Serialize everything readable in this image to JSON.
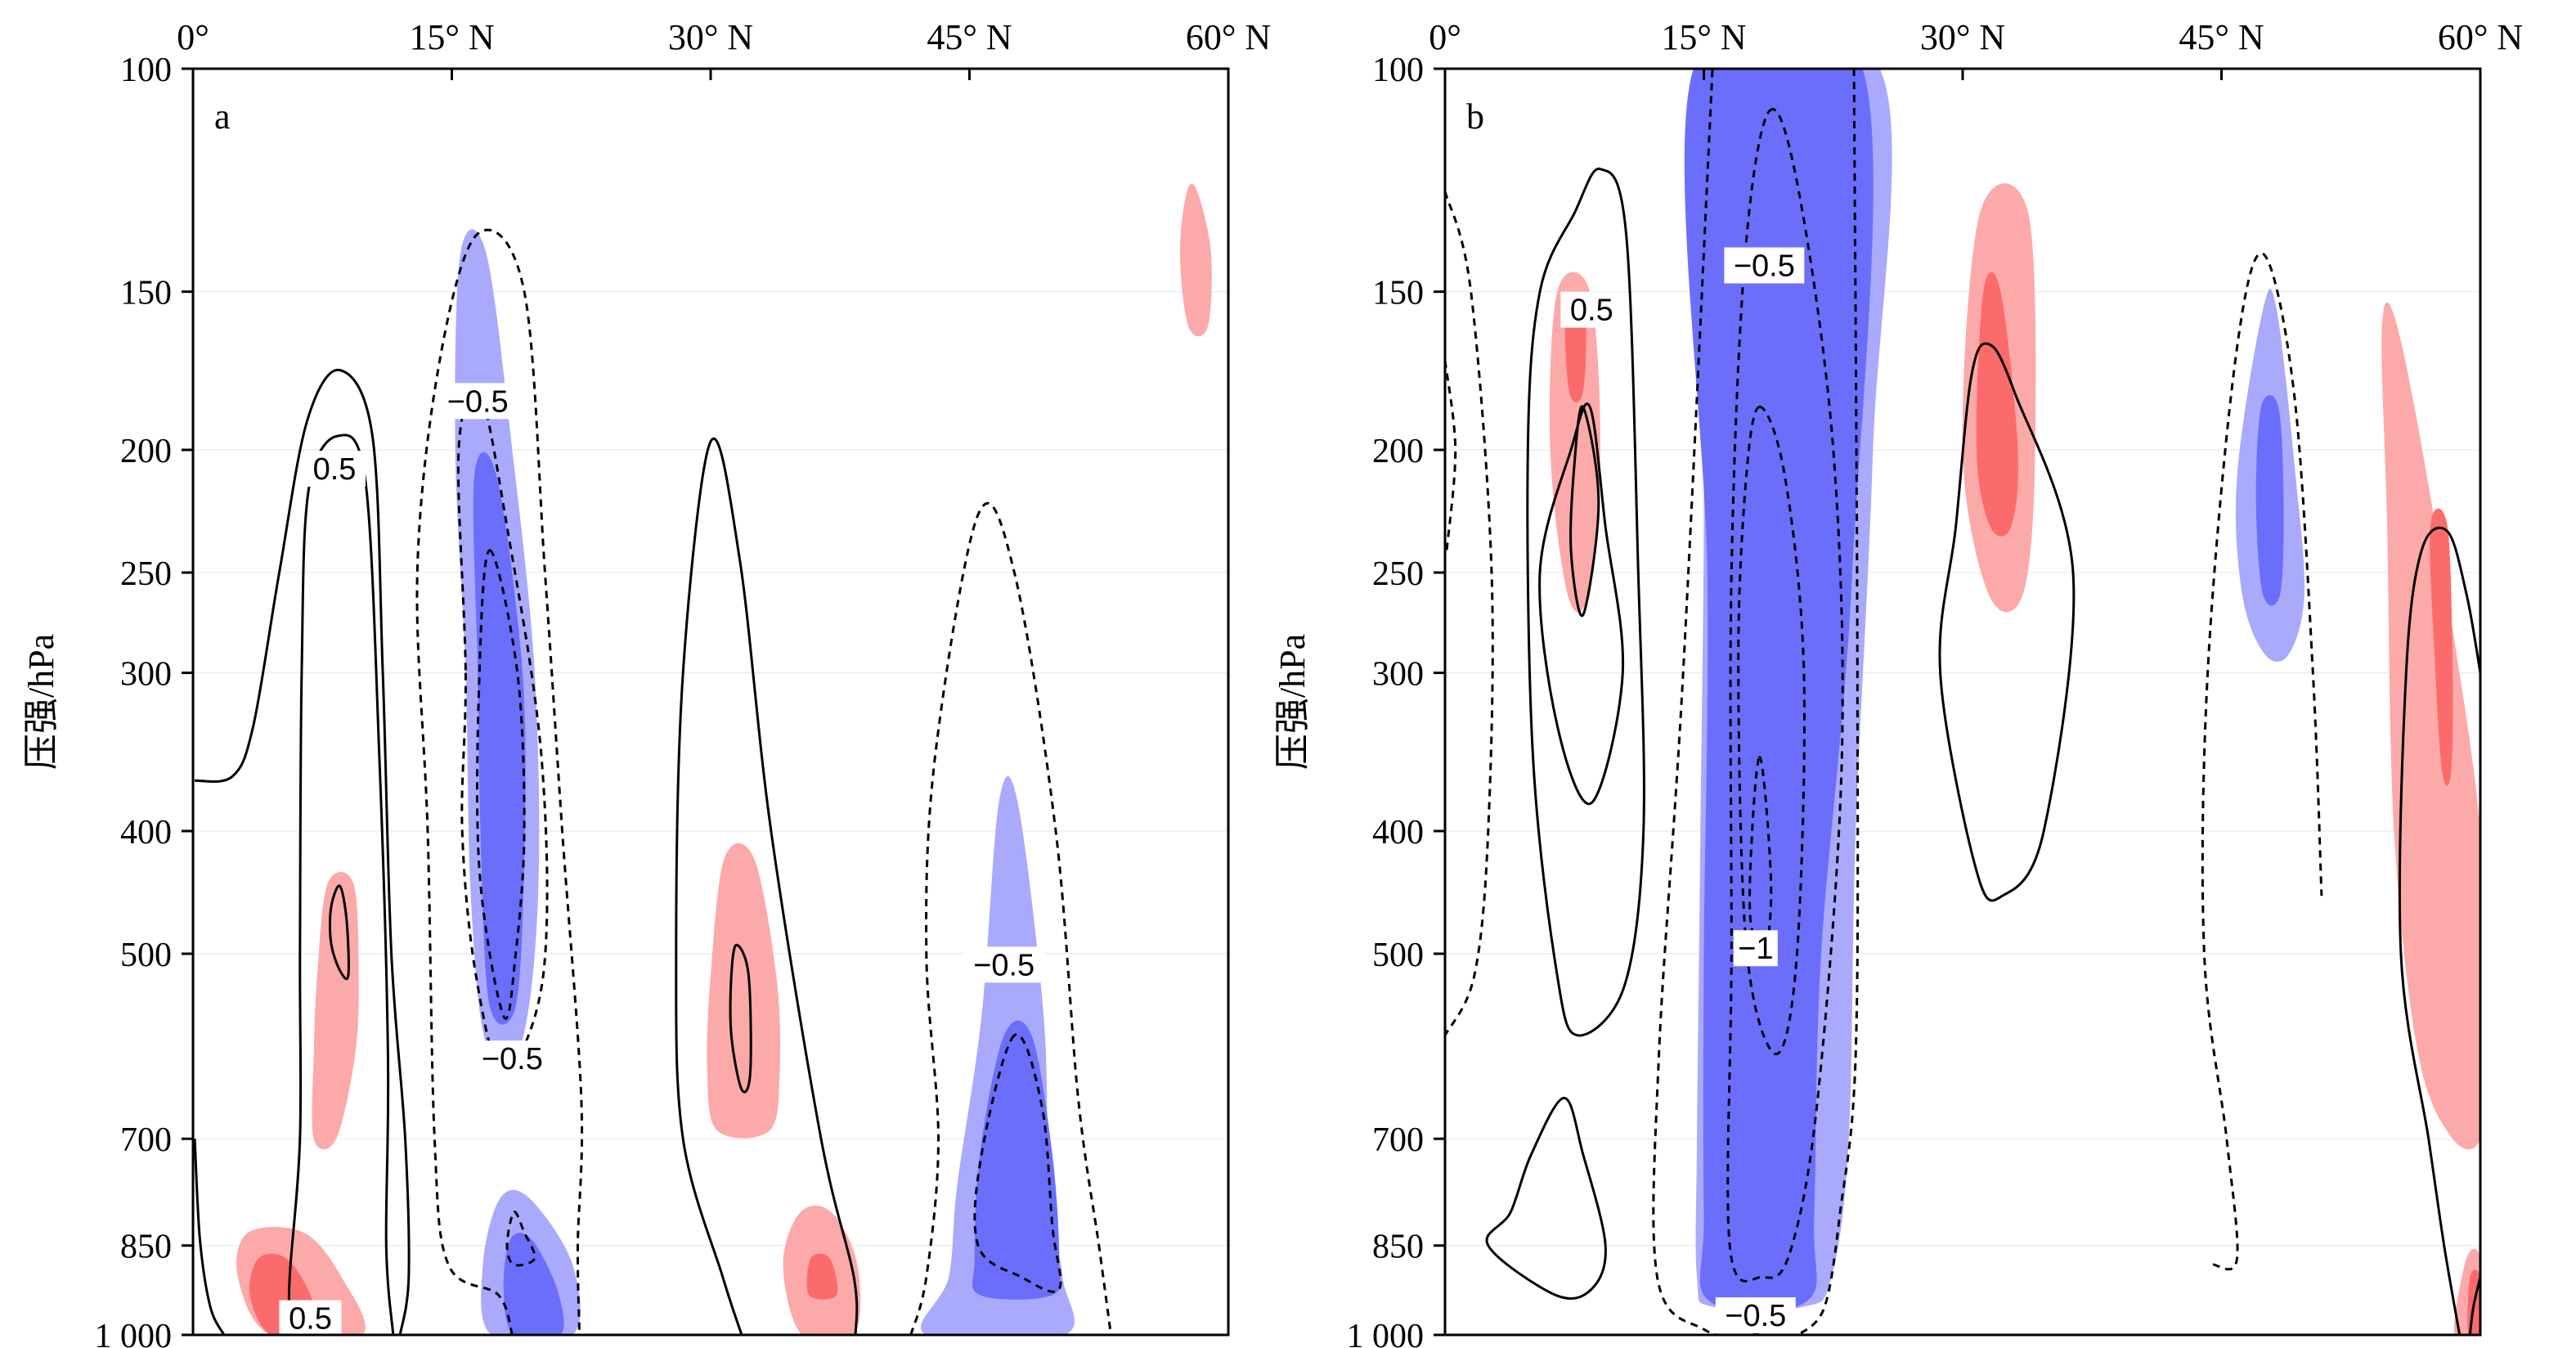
{
  "chart_data": [
    {
      "type": "contour",
      "panel_label": "a",
      "xlabel": "",
      "ylabel": "压强/hPa",
      "x_ticks": [
        0,
        15,
        30,
        45,
        60
      ],
      "x_tick_labels": [
        "0°",
        "15° N",
        "30° N",
        "45° N",
        "60° N"
      ],
      "xlim": [
        0,
        60
      ],
      "y_scale": "log",
      "ylim": [
        1000,
        100
      ],
      "y_ticks": [
        100,
        150,
        200,
        250,
        300,
        400,
        500,
        700,
        850,
        1000
      ],
      "y_tick_labels": [
        "100",
        "150",
        "200",
        "250",
        "300",
        "400",
        "500",
        "700",
        "850",
        "1 000"
      ],
      "colors": {
        "positive_light": "#fca9a9",
        "positive_dark": "#fb6b6b",
        "negative_light": "#a9aafc",
        "negative_dark": "#6b6efb",
        "contour": "#000000"
      },
      "contour_levels_shown": [
        -0.5,
        0.5
      ],
      "contour_labels": [
        {
          "text": "0.5",
          "lat": 8.2,
          "p": 207
        },
        {
          "text": "−0.5",
          "lat": 16.5,
          "p": 183
        },
        {
          "text": "−0.5",
          "lat": 18.5,
          "p": 605
        },
        {
          "text": "−0.5",
          "lat": 47,
          "p": 510
        },
        {
          "text": "0.5",
          "lat": 6.8,
          "p": 970
        }
      ],
      "positive_regions": [
        {
          "lat_center": 8.5,
          "p_top": 440,
          "p_bottom": 700,
          "intensity": "light"
        },
        {
          "lat_center": 5.2,
          "p_top": 850,
          "p_bottom": 1000,
          "intensity": "strong"
        },
        {
          "lat_center": 31.5,
          "p_top": 420,
          "p_bottom": 690,
          "intensity": "light"
        },
        {
          "lat_center": 36.5,
          "p_top": 800,
          "p_bottom": 1000,
          "intensity": "strong"
        },
        {
          "lat_center": 58,
          "p_top": 125,
          "p_bottom": 160,
          "intensity": "light"
        }
      ],
      "negative_regions": [
        {
          "lat_center": 17.5,
          "p_top": 140,
          "p_bottom": 590,
          "intensity": "strong"
        },
        {
          "lat_center": 18.5,
          "p_top": 780,
          "p_bottom": 1000,
          "intensity": "strong"
        },
        {
          "lat_center": 47,
          "p_top": 380,
          "p_bottom": 1000,
          "intensity": "strong"
        }
      ]
    },
    {
      "type": "contour",
      "panel_label": "b",
      "xlabel": "",
      "ylabel": "压强/hPa",
      "x_ticks": [
        0,
        15,
        30,
        45,
        60
      ],
      "x_tick_labels": [
        "0°",
        "15° N",
        "30° N",
        "45° N",
        "60° N"
      ],
      "xlim": [
        0,
        60
      ],
      "y_scale": "log",
      "ylim": [
        1000,
        100
      ],
      "y_ticks": [
        100,
        150,
        200,
        250,
        300,
        400,
        500,
        700,
        850,
        1000
      ],
      "y_tick_labels": [
        "100",
        "150",
        "200",
        "250",
        "300",
        "400",
        "500",
        "700",
        "850",
        "1 000"
      ],
      "colors": {
        "positive_light": "#fca9a9",
        "positive_dark": "#fb6b6b",
        "negative_light": "#a9aafc",
        "negative_dark": "#6b6efb",
        "contour": "#000000"
      },
      "contour_levels_shown": [
        -1,
        -0.5,
        0.5
      ],
      "contour_labels": [
        {
          "text": "−0.5",
          "lat": 18.5,
          "p": 143
        },
        {
          "text": "0.5",
          "lat": 8.5,
          "p": 155
        },
        {
          "text": "−1",
          "lat": 18,
          "p": 495
        },
        {
          "text": "−0.5",
          "lat": 18,
          "p": 965
        }
      ],
      "positive_regions": [
        {
          "lat_center": 8,
          "p_top": 150,
          "p_bottom": 270,
          "intensity": "strong"
        },
        {
          "lat_center": 32,
          "p_top": 130,
          "p_bottom": 260,
          "intensity": "strong"
        },
        {
          "lat_center": 57.5,
          "p_top": 160,
          "p_bottom": 700,
          "intensity": "strong"
        },
        {
          "lat_center": 59,
          "p_top": 870,
          "p_bottom": 1000,
          "intensity": "strong"
        }
      ],
      "negative_regions": [
        {
          "lat_center": 18.5,
          "p_top": 100,
          "p_bottom": 940,
          "intensity": "strong"
        },
        {
          "lat_center": 47.5,
          "p_top": 155,
          "p_bottom": 290,
          "intensity": "strong"
        }
      ]
    }
  ]
}
